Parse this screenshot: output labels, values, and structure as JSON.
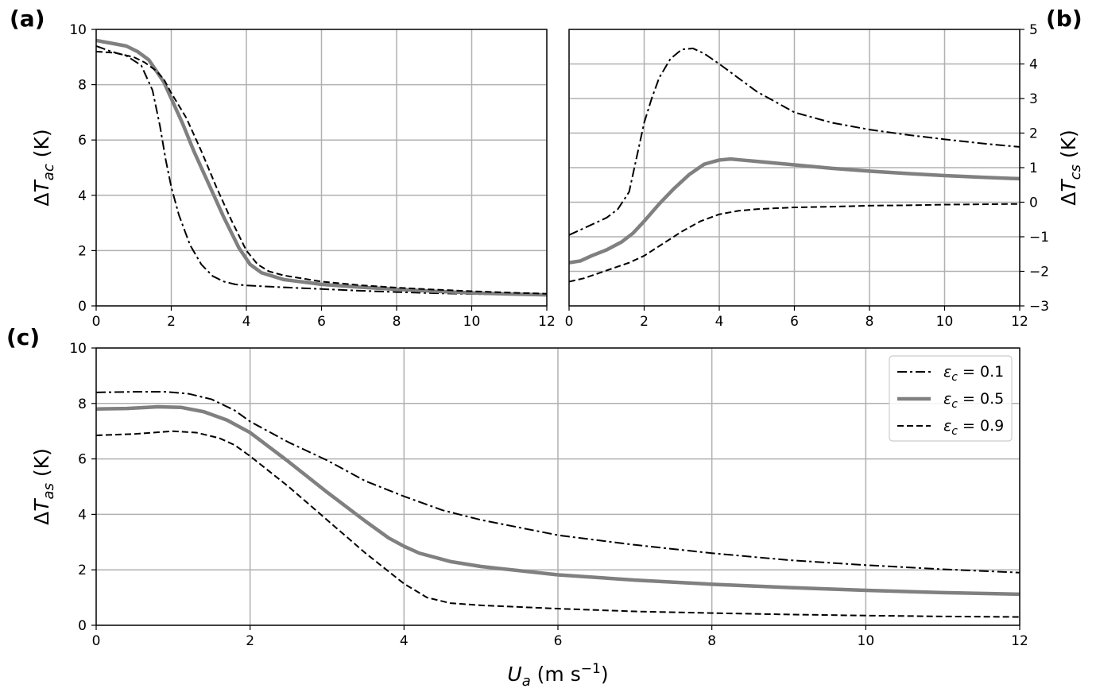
{
  "chart_data": [
    {
      "panel_label": "(a)",
      "type": "line",
      "ylabel": "ΔT_ac (K)",
      "ylabel_parts": {
        "delta": "Δ",
        "sym": "T",
        "sub": "ac",
        "unit": " (K)"
      },
      "xlim": [
        0,
        12
      ],
      "ylim": [
        0,
        10
      ],
      "xticks": [
        0,
        2,
        4,
        6,
        8,
        10,
        12
      ],
      "yticks": [
        0,
        2,
        4,
        6,
        8,
        10
      ],
      "y_axis_side": "left",
      "grid": true,
      "series": [
        {
          "name": "ε_c = 0.1",
          "style": "dashdot",
          "x": [
            0,
            0.4,
            0.8,
            1.2,
            1.5,
            1.7,
            1.85,
            2.0,
            2.2,
            2.5,
            2.8,
            3.1,
            3.4,
            3.7,
            4.0,
            5,
            6,
            7,
            8,
            9,
            10,
            11,
            12
          ],
          "y": [
            9.4,
            9.2,
            9.05,
            8.7,
            7.8,
            6.5,
            5.3,
            4.3,
            3.3,
            2.2,
            1.5,
            1.08,
            0.88,
            0.78,
            0.74,
            0.67,
            0.61,
            0.55,
            0.5,
            0.46,
            0.43,
            0.41,
            0.39
          ]
        },
        {
          "name": "ε_c = 0.5",
          "style": "solid-gray",
          "x": [
            0,
            0.4,
            0.8,
            1.1,
            1.4,
            1.6,
            1.8,
            2.0,
            2.3,
            2.6,
            3.0,
            3.4,
            3.8,
            4.1,
            4.4,
            5,
            6,
            7,
            8,
            9,
            10,
            11,
            12
          ],
          "y": [
            9.6,
            9.5,
            9.4,
            9.2,
            8.9,
            8.5,
            8.1,
            7.5,
            6.6,
            5.6,
            4.4,
            3.2,
            2.1,
            1.5,
            1.2,
            0.95,
            0.78,
            0.68,
            0.6,
            0.53,
            0.47,
            0.43,
            0.4
          ]
        },
        {
          "name": "ε_c = 0.9",
          "style": "dashed",
          "x": [
            0,
            0.5,
            1.0,
            1.3,
            1.6,
            1.8,
            2.0,
            2.4,
            2.8,
            3.2,
            3.6,
            4.0,
            4.3,
            4.6,
            5,
            6,
            7,
            8,
            9,
            10,
            11,
            12
          ],
          "y": [
            9.2,
            9.15,
            9.0,
            8.8,
            8.5,
            8.2,
            7.7,
            6.8,
            5.6,
            4.3,
            3.1,
            2.0,
            1.5,
            1.25,
            1.1,
            0.88,
            0.75,
            0.66,
            0.59,
            0.53,
            0.48,
            0.44
          ]
        }
      ]
    },
    {
      "panel_label": "(b)",
      "type": "line",
      "ylabel": "ΔT_cs (K)",
      "ylabel_parts": {
        "delta": "Δ",
        "sym": "T",
        "sub": "cs",
        "unit": " (K)"
      },
      "xlim": [
        0,
        12
      ],
      "ylim": [
        -3,
        5
      ],
      "xticks": [
        0,
        2,
        4,
        6,
        8,
        10,
        12
      ],
      "yticks": [
        -3,
        -2,
        -1,
        0,
        1,
        2,
        3,
        4,
        5
      ],
      "ytick_labels": [
        "−3",
        "−2",
        "−1",
        "0",
        "1",
        "2",
        "3",
        "4",
        "5"
      ],
      "y_axis_side": "right",
      "grid": true,
      "series": [
        {
          "name": "ε_c = 0.1",
          "style": "dashdot",
          "x": [
            0,
            0.5,
            1.0,
            1.3,
            1.6,
            1.8,
            2.0,
            2.2,
            2.4,
            2.7,
            3.0,
            3.3,
            3.6,
            4.0,
            4.5,
            5,
            6,
            7,
            8,
            9,
            10,
            11,
            12
          ],
          "y": [
            -0.95,
            -0.7,
            -0.45,
            -0.2,
            0.3,
            1.3,
            2.3,
            3.0,
            3.6,
            4.15,
            4.42,
            4.45,
            4.3,
            4.0,
            3.6,
            3.2,
            2.6,
            2.3,
            2.1,
            1.95,
            1.82,
            1.7,
            1.6
          ]
        },
        {
          "name": "ε_c = 0.5",
          "style": "solid-gray",
          "x": [
            0,
            0.3,
            0.6,
            1.0,
            1.4,
            1.7,
            2.0,
            2.4,
            2.8,
            3.2,
            3.6,
            4.0,
            4.3,
            4.6,
            5,
            6,
            7,
            8,
            9,
            10,
            11,
            12
          ],
          "y": [
            -1.75,
            -1.7,
            -1.55,
            -1.38,
            -1.15,
            -0.9,
            -0.55,
            -0.05,
            0.4,
            0.8,
            1.1,
            1.22,
            1.25,
            1.22,
            1.18,
            1.08,
            0.98,
            0.9,
            0.83,
            0.77,
            0.72,
            0.68
          ]
        },
        {
          "name": "ε_c = 0.9",
          "style": "dashed",
          "x": [
            0,
            0.4,
            0.8,
            1.2,
            1.6,
            2.0,
            2.5,
            3.0,
            3.5,
            4.0,
            4.5,
            5,
            6,
            7,
            8,
            9,
            10,
            11,
            12
          ],
          "y": [
            -2.3,
            -2.2,
            -2.05,
            -1.9,
            -1.75,
            -1.55,
            -1.2,
            -0.85,
            -0.55,
            -0.35,
            -0.25,
            -0.2,
            -0.15,
            -0.13,
            -0.1,
            -0.09,
            -0.07,
            -0.06,
            -0.05
          ]
        }
      ]
    },
    {
      "panel_label": "(c)",
      "type": "line",
      "ylabel": "ΔT_as (K)",
      "ylabel_parts": {
        "delta": "Δ",
        "sym": "T",
        "sub": "as",
        "unit": " (K)"
      },
      "xlabel": "U_a (m s^-1)",
      "xlabel_parts": {
        "sym": "U",
        "sub": "a",
        "unit": " (m s",
        "sup": "−1",
        "close": ")"
      },
      "xlim": [
        0,
        12
      ],
      "ylim": [
        0,
        10
      ],
      "xticks": [
        0,
        2,
        4,
        6,
        8,
        10,
        12
      ],
      "yticks": [
        0,
        2,
        4,
        6,
        8,
        10
      ],
      "y_axis_side": "left",
      "grid": true,
      "legend_position": "top-right",
      "series": [
        {
          "name": "ε_c = 0.1",
          "style": "dashdot",
          "x": [
            0,
            0.5,
            0.9,
            1.2,
            1.5,
            1.8,
            2.0,
            2.5,
            3.0,
            3.5,
            4.0,
            4.5,
            5,
            6,
            7,
            8,
            9,
            10,
            11,
            12
          ],
          "y": [
            8.4,
            8.42,
            8.42,
            8.35,
            8.15,
            7.75,
            7.35,
            6.6,
            5.95,
            5.2,
            4.65,
            4.15,
            3.8,
            3.25,
            2.9,
            2.6,
            2.35,
            2.17,
            2.02,
            1.9
          ]
        },
        {
          "name": "ε_c = 0.5",
          "style": "solid-gray",
          "x": [
            0,
            0.4,
            0.8,
            1.1,
            1.4,
            1.7,
            2.0,
            2.5,
            3.0,
            3.5,
            3.8,
            4.0,
            4.2,
            4.6,
            5,
            6,
            7,
            8,
            9,
            10,
            11,
            12
          ],
          "y": [
            7.8,
            7.82,
            7.88,
            7.86,
            7.7,
            7.4,
            6.95,
            5.9,
            4.8,
            3.75,
            3.15,
            2.85,
            2.6,
            2.3,
            2.12,
            1.82,
            1.63,
            1.48,
            1.36,
            1.26,
            1.18,
            1.12
          ]
        },
        {
          "name": "ε_c = 0.9",
          "style": "dashed",
          "x": [
            0,
            0.5,
            1.0,
            1.3,
            1.6,
            1.8,
            2.0,
            2.5,
            3.0,
            3.5,
            4.0,
            4.3,
            4.6,
            5,
            6,
            7,
            8,
            9,
            10,
            11,
            12
          ],
          "y": [
            6.85,
            6.9,
            7.0,
            6.95,
            6.75,
            6.5,
            6.1,
            5.0,
            3.8,
            2.6,
            1.5,
            1.0,
            0.8,
            0.72,
            0.6,
            0.5,
            0.44,
            0.39,
            0.35,
            0.32,
            0.3
          ]
        }
      ]
    }
  ],
  "legend": [
    {
      "sym": "ε",
      "sub": "c",
      "rest": " = 0.1",
      "style": "dashdot"
    },
    {
      "sym": "ε",
      "sub": "c",
      "rest": " = 0.5",
      "style": "solid-gray"
    },
    {
      "sym": "ε",
      "sub": "c",
      "rest": " = 0.9",
      "style": "dashed"
    }
  ],
  "colors": {
    "black": "#000000",
    "gray": "#808080",
    "grid": "#b0b0b0"
  }
}
